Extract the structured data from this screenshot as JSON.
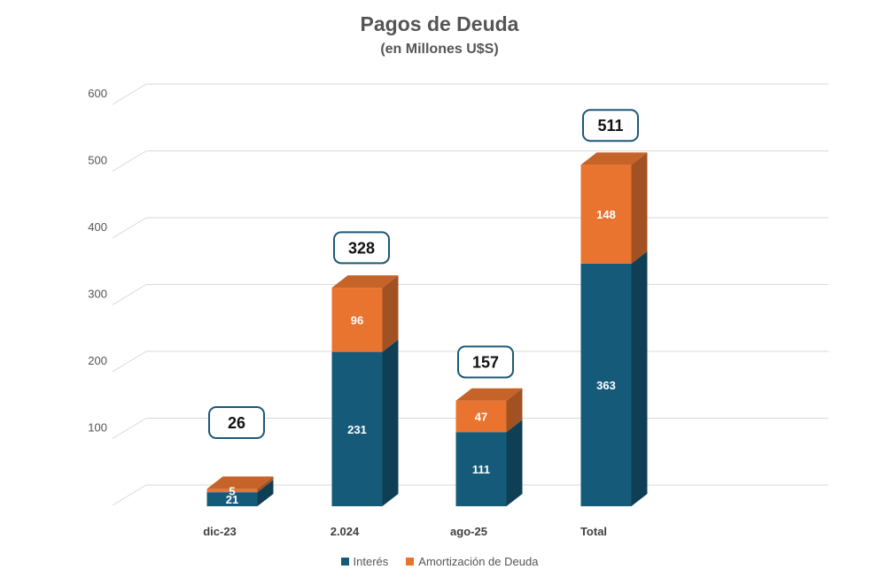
{
  "chart_data": {
    "type": "bar",
    "stacked": true,
    "title": "Pagos de Deuda",
    "subtitle": "(en Millones U$S)",
    "categories": [
      "dic-23",
      "2.024",
      "ago-25",
      "Total"
    ],
    "series": [
      {
        "name": "Interés",
        "values": [
          21,
          231,
          111,
          363
        ],
        "color": "#165a7a"
      },
      {
        "name": "Amortización de Deuda",
        "values": [
          5,
          96,
          47,
          148
        ],
        "color": "#e87430"
      }
    ],
    "totals": [
      26,
      328,
      157,
      511
    ],
    "ylim": [
      0,
      600
    ],
    "yticks": [
      100,
      200,
      300,
      400,
      500,
      600
    ],
    "grid": true,
    "legend_position": "bottom",
    "style": "3d-columns"
  }
}
